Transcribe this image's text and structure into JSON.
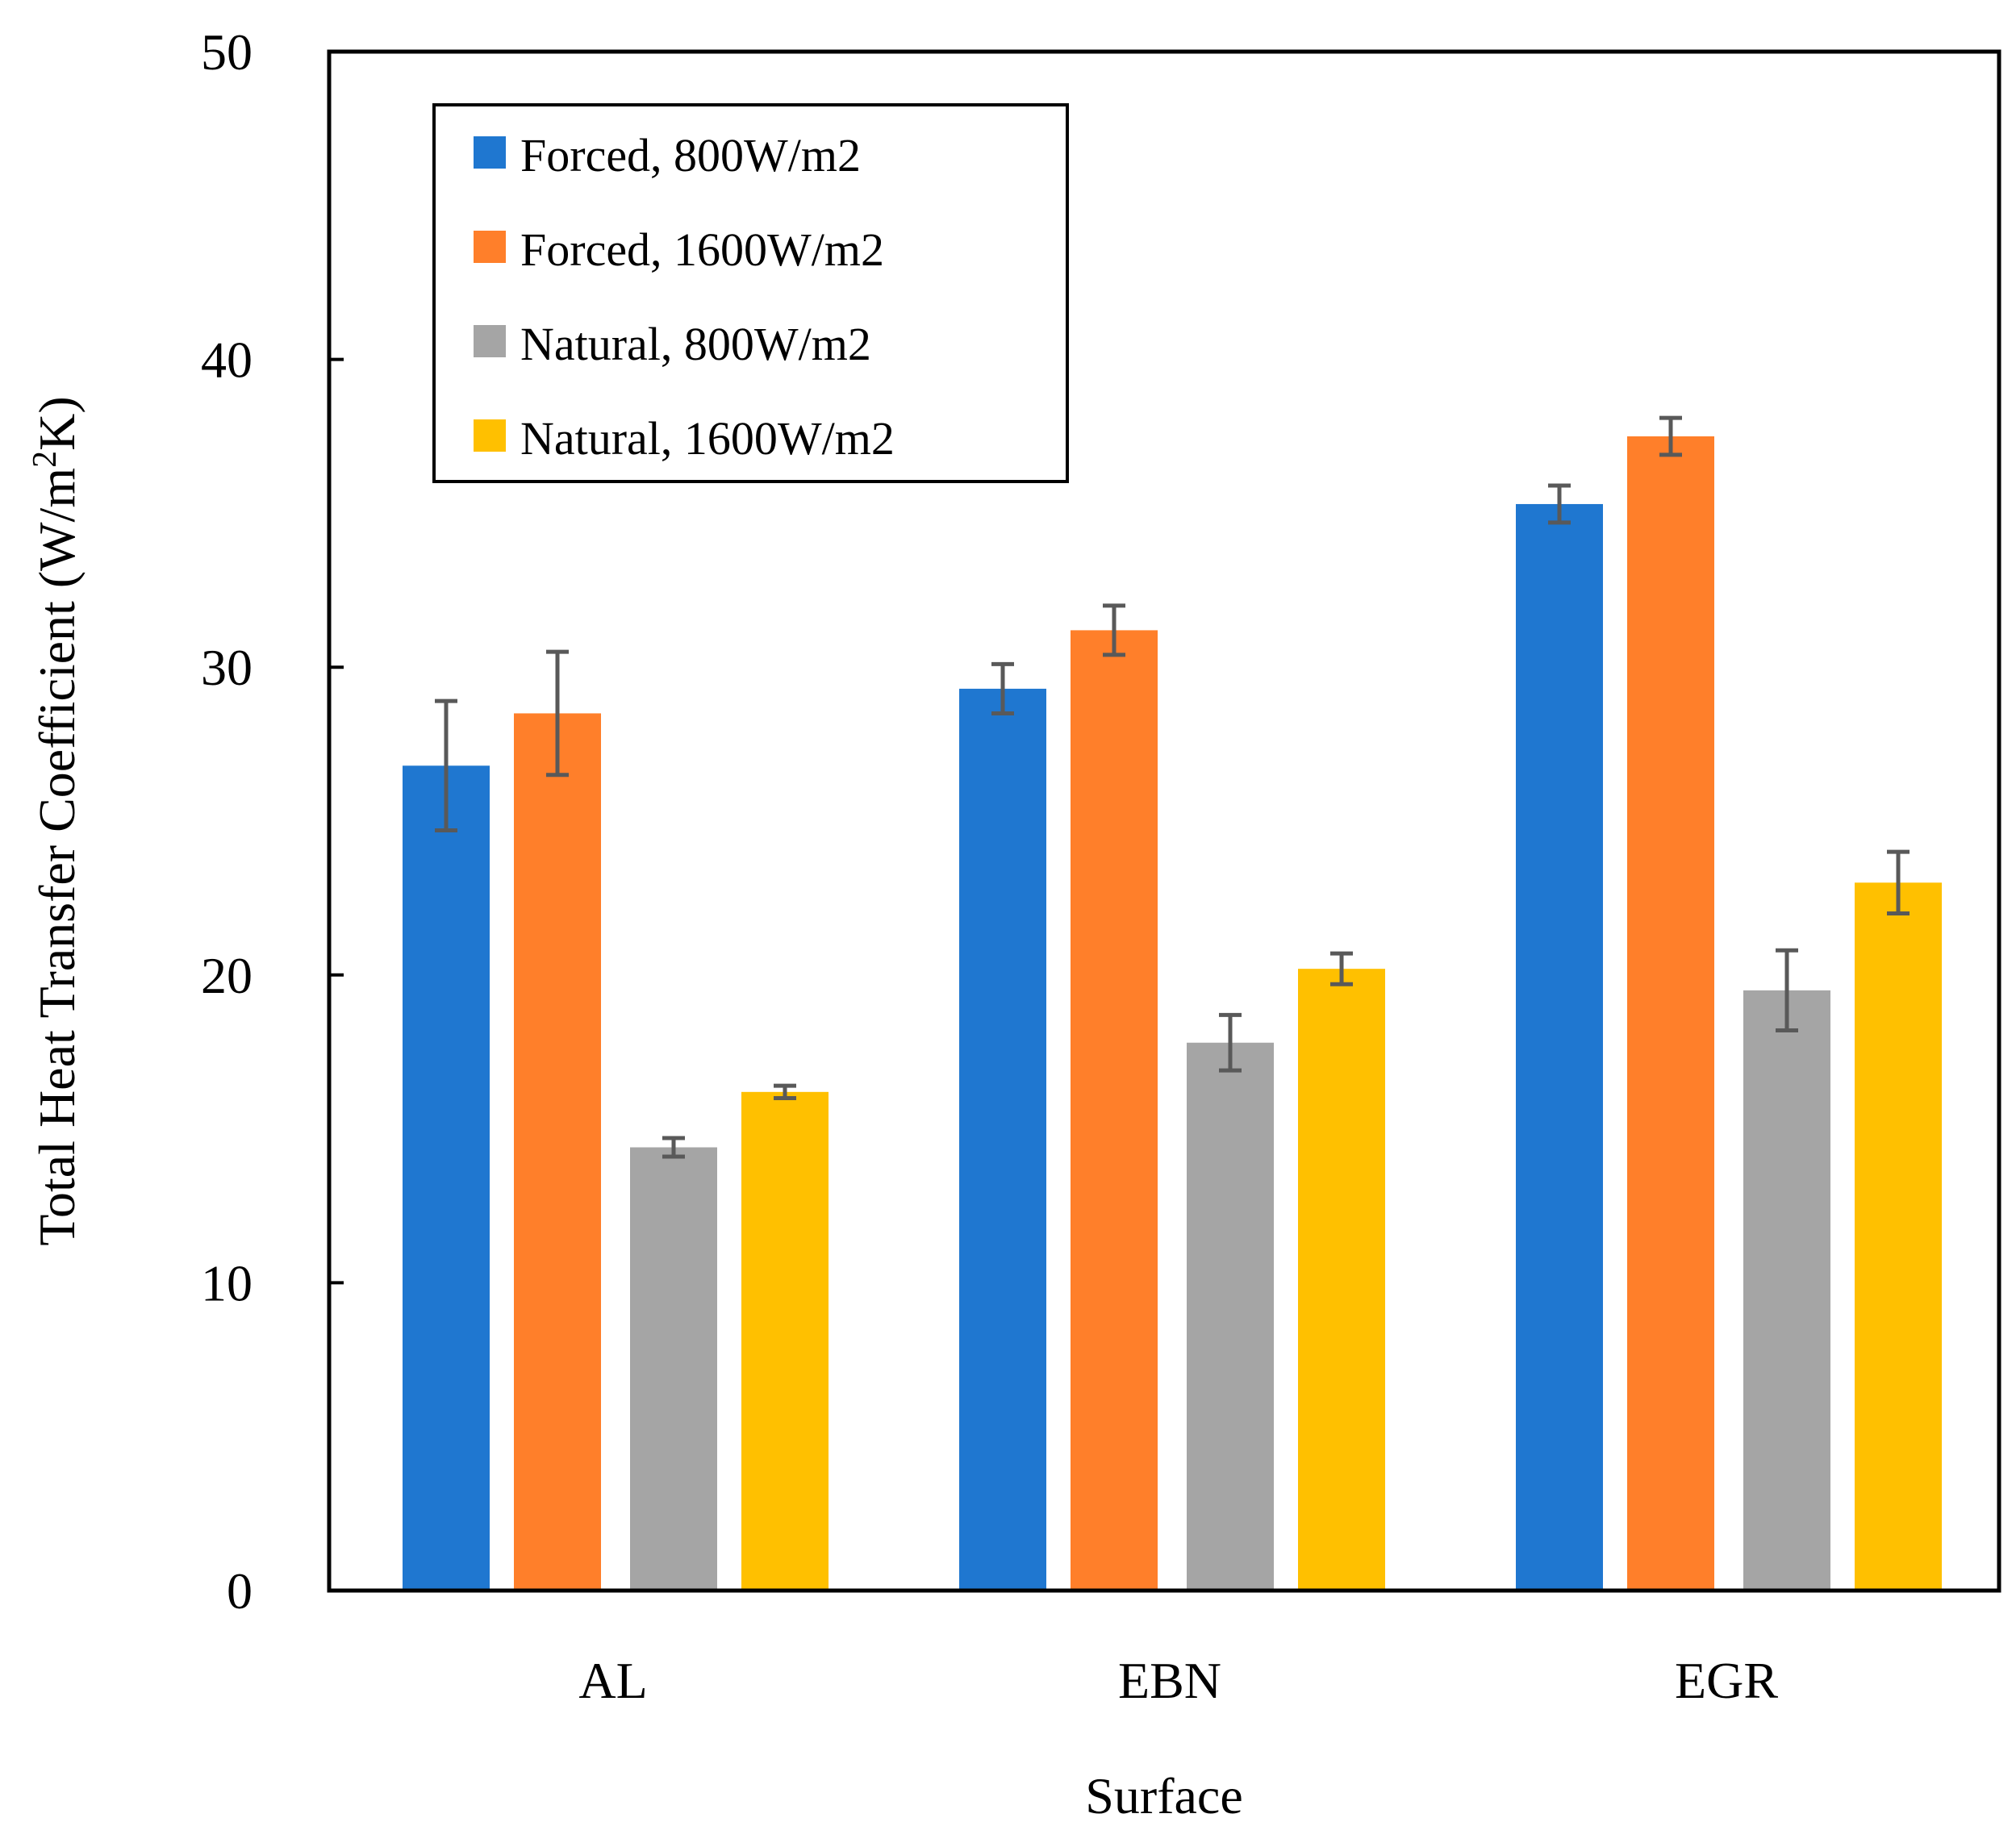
{
  "chart_data": {
    "type": "bar",
    "title": "",
    "xlabel": "Surface",
    "ylabel": "Total Heat Transfer Coefficient (W/m²K)",
    "ylabel_parts": {
      "main": "Total Heat Transfer Coefficient (W/m",
      "superscript": "2",
      "end": "K)"
    },
    "ylim": [
      0,
      50
    ],
    "yticks": [
      0,
      10,
      20,
      30,
      40,
      50
    ],
    "categories": [
      "AL",
      "EBN",
      "EGR"
    ],
    "legend_position": "top-left",
    "series": [
      {
        "name": "Forced, 800W/m2",
        "color": "#1F77D0",
        "values": [
          26.8,
          29.3,
          35.3
        ],
        "errors": [
          2.1,
          0.8,
          0.6
        ]
      },
      {
        "name": "Forced, 1600W/m2",
        "color": "#FF7F2A",
        "values": [
          28.5,
          31.2,
          37.5
        ],
        "errors": [
          2.0,
          0.8,
          0.6
        ]
      },
      {
        "name": "Natural, 800W/m2",
        "color": "#A5A5A5",
        "values": [
          14.4,
          17.8,
          19.5
        ],
        "errors": [
          0.3,
          0.9,
          1.3
        ]
      },
      {
        "name": "Natural, 1600W/m2",
        "color": "#FFC000",
        "values": [
          16.2,
          20.2,
          23.0
        ],
        "errors": [
          0.2,
          0.5,
          1.0
        ]
      }
    ],
    "error_bar_color": "#595959"
  }
}
